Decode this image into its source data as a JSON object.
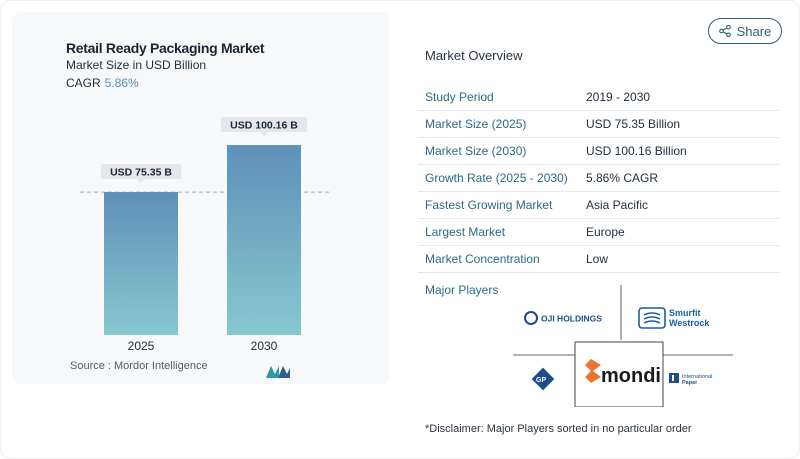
{
  "chart": {
    "title": "Retail Ready Packaging Market",
    "subtitle": "Market Size in USD Billion",
    "cagr_label": "CAGR",
    "cagr_value": "5.86%"
  },
  "chart_data": {
    "type": "bar",
    "title": "Retail Ready Packaging Market",
    "subtitle": "Market Size in USD Billion",
    "categories": [
      "2025",
      "2030"
    ],
    "values": [
      75.35,
      100.16
    ],
    "data_labels": [
      "USD 75.35 B",
      "USD 100.16 B"
    ],
    "ylim": [
      0,
      100.16
    ],
    "reference_line_value": 75.35,
    "bar_color": "#5e90b8",
    "bar_gradient_bottom": "#87c8cf"
  },
  "source": {
    "text": "Source :  Mordor Intelligence",
    "logo": "mordor-intelligence-logo"
  },
  "share": {
    "label": "Share",
    "icon": "share-icon"
  },
  "overview": {
    "title": "Market Overview",
    "rows": [
      {
        "key": "Study Period",
        "value": "2019 - 2030"
      },
      {
        "key": "Market Size (2025)",
        "value": "USD 75.35 Billion"
      },
      {
        "key": "Market Size (2030)",
        "value": "USD 100.16 Billion"
      },
      {
        "key": "Growth Rate (2025 - 2030)",
        "value": "5.86% CAGR"
      },
      {
        "key": "Fastest Growing Market",
        "value": "Asia Pacific"
      },
      {
        "key": "Largest Market",
        "value": "Europe"
      },
      {
        "key": "Market Concentration",
        "value": "Low"
      }
    ]
  },
  "players": {
    "title": "Major Players",
    "logos": {
      "oji": "OJI HOLDINGS",
      "smurfit_1": "Smurfit",
      "smurfit_2": "Westrock",
      "gp": "GP",
      "mondi": "mondi",
      "ip_1": "International",
      "ip_2": "Paper"
    }
  },
  "disclaimer": "*Disclaimer: Major Players sorted in no particular order",
  "colors": {
    "accent": "#2d6a84",
    "cagr": "#5b8db8",
    "mondi_orange": "#e8762c",
    "oji_blue": "#1f4d8c",
    "smurfit_blue": "#1b5e9b"
  }
}
